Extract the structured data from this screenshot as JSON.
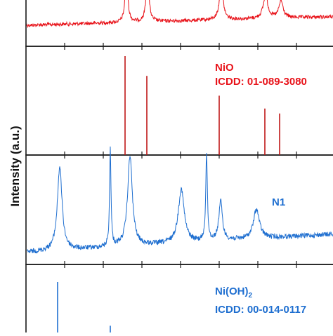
{
  "ylabel": "Intensity (a.u.)",
  "colors": {
    "red": "#e8141b",
    "darkred": "#c01818",
    "blue": "#1f6fd0"
  },
  "labels": {
    "nio_name": "NiO",
    "nio_icdd": "ICDD: 01-089-3080",
    "n1_name": "N1",
    "niohh_name_pre": "Ni(OH)",
    "niohh_name_sub": "2",
    "niohh_icdd": "ICDD: 00-014-0117"
  },
  "chart_data": [
    {
      "type": "line",
      "series": [
        {
          "values": "noisy red XRD pattern, peaks at approx x = 180, 210, 315, 378, 400 (relative positions)"
        }
      ],
      "peaks": [
        180,
        210,
        315,
        378,
        400
      ]
    },
    {
      "type": "bar",
      "label": "NiO ICDD: 01-089-3080",
      "x": [
        178,
        209,
        312,
        377,
        398
      ],
      "values": [
        1.0,
        0.8,
        0.6,
        0.47,
        0.42
      ]
    },
    {
      "type": "line",
      "label": "N1",
      "peaks": [
        85,
        157,
        185,
        258,
        294,
        314,
        365
      ],
      "peak_heights": [
        0.85,
        1.0,
        0.92,
        0.55,
        0.88,
        0.4,
        0.3
      ]
    },
    {
      "type": "bar",
      "label": "Ni(OH)2 ICDD: 00-014-0117",
      "x": [
        82,
        157
      ],
      "values": [
        1.0,
        0.2
      ]
    }
  ]
}
